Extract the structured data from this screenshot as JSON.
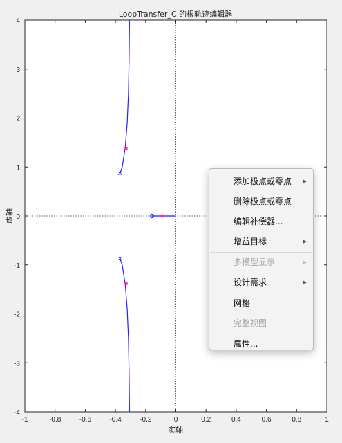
{
  "chart_data": {
    "type": "root-locus",
    "title": "LoopTransfer_C 的根轨迹编辑器",
    "xlabel": "实轴",
    "ylabel": "虚轴",
    "xlim": [
      -1,
      1
    ],
    "ylim": [
      -4,
      4
    ],
    "xticks": [
      -1,
      -0.8,
      -0.6,
      -0.4,
      -0.2,
      0,
      0.2,
      0.4,
      0.6,
      0.8,
      1
    ],
    "xtick_labels": [
      "-1",
      "-0.8",
      "-0.6",
      "-0.4",
      "-0.2",
      "0",
      "0.2",
      "0.4",
      "0.6",
      "0.8",
      "1"
    ],
    "yticks": [
      4,
      3,
      2,
      1,
      0,
      -1,
      -2,
      -3,
      -4
    ],
    "ytick_labels": [
      "4",
      "3",
      "2",
      "1",
      "0",
      "-1",
      "-2",
      "-3",
      "-4"
    ],
    "branches": [
      {
        "name": "",
        "color": "#1f1fff",
        "points": [
          [
            -0.37,
            0.87
          ],
          [
            -0.355,
            1.0
          ],
          [
            -0.335,
            1.4
          ],
          [
            -0.322,
            1.9
          ],
          [
            -0.314,
            2.5
          ],
          [
            -0.31,
            3.2
          ],
          [
            -0.307,
            4.0
          ]
        ]
      },
      {
        "name": "",
        "color": "#1f1fff",
        "points": [
          [
            -0.37,
            -0.87
          ],
          [
            -0.355,
            -1.0
          ],
          [
            -0.335,
            -1.4
          ],
          [
            -0.322,
            -1.9
          ],
          [
            -0.314,
            -2.5
          ],
          [
            -0.31,
            -3.2
          ],
          [
            -0.307,
            -4.0
          ]
        ]
      },
      {
        "name": "",
        "color": "#1f1fff",
        "points": [
          [
            -0.158,
            0
          ],
          [
            0.0,
            0
          ]
        ]
      }
    ],
    "open_loop_poles": [
      [
        -0.37,
        0.87
      ],
      [
        -0.37,
        -0.87
      ]
    ],
    "open_loop_zeros": [
      [
        -0.158,
        0
      ]
    ],
    "closed_loop_poles": [
      [
        -0.33,
        1.38
      ],
      [
        -0.33,
        -1.38
      ],
      [
        -0.09,
        0
      ]
    ],
    "pole_marker_color": "#1f1fff",
    "closed_loop_color": "#ff2aa0",
    "reference_lines": [
      "x = 0",
      "y = 0"
    ]
  },
  "context_menu": {
    "items": [
      {
        "label": "添加极点或零点",
        "submenu": true,
        "enabled": true
      },
      {
        "label": "删除极点或零点",
        "submenu": false,
        "enabled": true
      },
      {
        "label": "编辑补偿器...",
        "submenu": false,
        "enabled": true
      },
      {
        "label": "增益目标",
        "submenu": true,
        "enabled": true
      },
      {
        "label": "多模型显示",
        "submenu": true,
        "enabled": false
      },
      {
        "label": "设计需求",
        "submenu": true,
        "enabled": true
      },
      {
        "label": "网格",
        "submenu": false,
        "enabled": true
      },
      {
        "label": "完整视图",
        "submenu": false,
        "enabled": false
      },
      {
        "label": "属性...",
        "submenu": false,
        "enabled": true
      }
    ],
    "arrow_glyph": "▶"
  }
}
